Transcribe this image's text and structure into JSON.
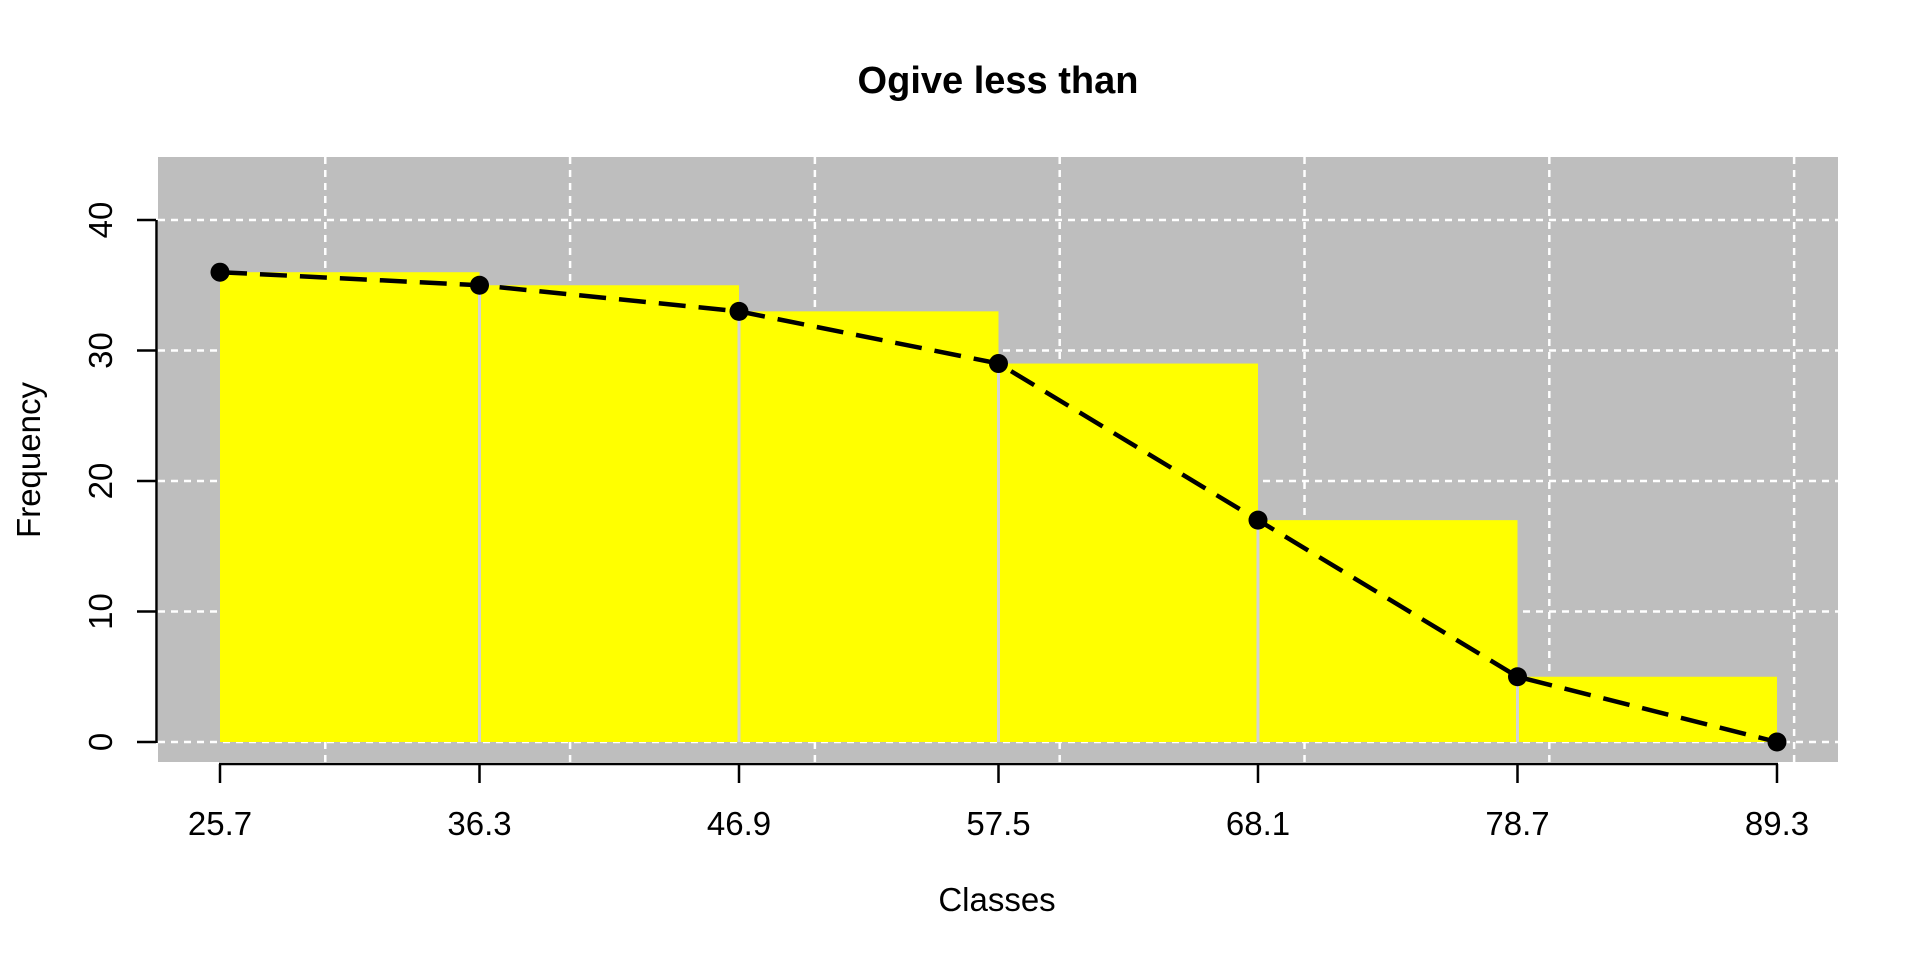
{
  "chart_data": {
    "type": "bar",
    "subtype": "histogram-with-ogive-overlay",
    "title": "Ogive less than",
    "xlabel": "Classes",
    "ylabel": "Frequency",
    "class_boundaries": [
      25.7,
      36.3,
      46.9,
      57.5,
      68.1,
      78.7,
      89.3
    ],
    "x_tick_labels": [
      "25.7",
      "36.3",
      "46.9",
      "57.5",
      "68.1",
      "78.7",
      "89.3"
    ],
    "bar_frequencies": [
      36,
      35,
      33,
      29,
      17,
      5
    ],
    "series": [
      {
        "name": "ogive-line",
        "x": [
          25.7,
          36.3,
          46.9,
          57.5,
          68.1,
          78.7,
          89.3
        ],
        "y": [
          36,
          35,
          33,
          29,
          17,
          5,
          0
        ],
        "style": "dashed-line-with-points"
      }
    ],
    "y_ticks": [
      0,
      10,
      20,
      30,
      40
    ],
    "y_tick_labels": [
      "0",
      "10",
      "20",
      "30",
      "40"
    ],
    "x_gridlines_at": [
      30,
      40,
      50,
      60,
      70,
      80,
      90
    ],
    "ylim": [
      0,
      44.8
    ],
    "xlim": [
      23.2,
      91.8
    ],
    "grid": "on",
    "legend": "none",
    "colors": {
      "bar_fill": "#ffff00",
      "bar_border": "#d3d3d3",
      "plot_background": "#bebebe",
      "gridline": "#ffffff",
      "ogive_line": "#000000",
      "point": "#000000",
      "axis": "#000000",
      "text": "#000000",
      "page_background": "#ffffff"
    }
  }
}
